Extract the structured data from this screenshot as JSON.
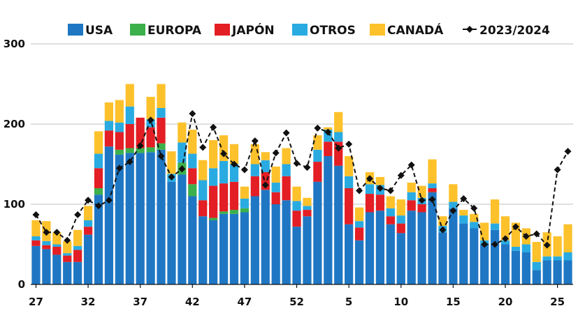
{
  "chart_data": {
    "type": "bar",
    "stacked": true,
    "title": "",
    "xlabel": "",
    "ylabel": "",
    "ylim": [
      0,
      300
    ],
    "yticks": [
      0,
      100,
      200,
      300
    ],
    "grid": true,
    "legend_position": "top",
    "x_tick_labels": [
      "27",
      "32",
      "37",
      "42",
      "47",
      "52",
      "5",
      "10",
      "15",
      "20",
      "25"
    ],
    "x_tick_indices": [
      0,
      5,
      10,
      15,
      20,
      25,
      30,
      35,
      40,
      45,
      50
    ],
    "categories": [
      "27",
      "28",
      "29",
      "30",
      "31",
      "32",
      "33",
      "34",
      "35",
      "36",
      "37",
      "38",
      "39",
      "40",
      "41",
      "42",
      "43",
      "44",
      "45",
      "46",
      "47",
      "48",
      "49",
      "50",
      "51",
      "52",
      "1",
      "2",
      "3",
      "4",
      "5",
      "6",
      "7",
      "8",
      "9",
      "10",
      "11",
      "12",
      "13",
      "14",
      "15",
      "16",
      "17",
      "18",
      "19",
      "20",
      "21",
      "22",
      "23",
      "24",
      "25",
      "26"
    ],
    "series": [
      {
        "name": "USA",
        "color": "#1f77c4",
        "values": [
          48,
          44,
          37,
          28,
          28,
          62,
          112,
          172,
          162,
          164,
          164,
          165,
          168,
          128,
          137,
          110,
          85,
          80,
          88,
          88,
          90,
          110,
          118,
          100,
          105,
          72,
          85,
          128,
          160,
          148,
          75,
          55,
          90,
          92,
          75,
          64,
          92,
          90,
          115,
          65,
          95,
          76,
          70,
          50,
          68,
          50,
          42,
          40,
          18,
          30,
          30,
          30
        ]
      },
      {
        "name": "EUROPA",
        "color": "#3cb04a",
        "values": [
          0,
          0,
          0,
          0,
          0,
          0,
          8,
          0,
          6,
          6,
          6,
          6,
          8,
          0,
          15,
          15,
          0,
          3,
          3,
          5,
          5,
          0,
          0,
          0,
          0,
          0,
          0,
          0,
          0,
          0,
          0,
          0,
          0,
          0,
          0,
          0,
          0,
          0,
          0,
          0,
          0,
          0,
          0,
          0,
          0,
          0,
          0,
          0,
          0,
          0,
          0,
          0
        ]
      },
      {
        "name": "JAPÓN",
        "color": "#e31e24",
        "values": [
          7,
          5,
          10,
          8,
          15,
          10,
          25,
          20,
          22,
          30,
          38,
          25,
          32,
          0,
          0,
          20,
          20,
          40,
          35,
          35,
          0,
          25,
          22,
          15,
          30,
          20,
          8,
          25,
          18,
          30,
          45,
          16,
          23,
          20,
          10,
          12,
          13,
          10,
          5,
          0,
          0,
          0,
          0,
          0,
          0,
          0,
          0,
          0,
          0,
          0,
          0,
          0
        ]
      },
      {
        "name": "OTROS",
        "color": "#29abe2",
        "values": [
          5,
          5,
          3,
          3,
          5,
          8,
          18,
          12,
          12,
          22,
          0,
          10,
          12,
          10,
          25,
          18,
          25,
          22,
          28,
          22,
          12,
          15,
          15,
          12,
          15,
          12,
          5,
          15,
          15,
          12,
          15,
          8,
          12,
          12,
          10,
          10,
          10,
          8,
          6,
          8,
          8,
          10,
          8,
          5,
          8,
          5,
          5,
          10,
          10,
          5,
          5,
          10
        ]
      },
      {
        "name": "CANADÁ",
        "color": "#fdc12b",
        "values": [
          20,
          25,
          15,
          15,
          20,
          18,
          28,
          23,
          28,
          28,
          0,
          28,
          30,
          28,
          25,
          30,
          25,
          35,
          32,
          25,
          15,
          25,
          10,
          20,
          20,
          18,
          10,
          18,
          3,
          25,
          25,
          17,
          15,
          10,
          15,
          20,
          12,
          15,
          30,
          12,
          22,
          7,
          10,
          22,
          30,
          30,
          30,
          20,
          25,
          30,
          25,
          35
        ]
      }
    ],
    "line_series": {
      "name": "2023/2024",
      "color": "#111111",
      "values": [
        87,
        65,
        65,
        55,
        87,
        105,
        98,
        105,
        145,
        153,
        173,
        205,
        160,
        134,
        144,
        213,
        171,
        196,
        163,
        150,
        143,
        179,
        124,
        164,
        189,
        151,
        146,
        195,
        190,
        170,
        175,
        117,
        132,
        120,
        117,
        136,
        149,
        105,
        106,
        68,
        92,
        107,
        95,
        50,
        50,
        57,
        72,
        60,
        63,
        49,
        143,
        166
      ]
    }
  },
  "legend": {
    "items": [
      {
        "label": "USA",
        "color": "#1f77c4",
        "kind": "swatch"
      },
      {
        "label": "EUROPA",
        "color": "#3cb04a",
        "kind": "swatch"
      },
      {
        "label": "JAPÓN",
        "color": "#e31e24",
        "kind": "swatch"
      },
      {
        "label": "OTROS",
        "color": "#29abe2",
        "kind": "swatch"
      },
      {
        "label": "CANADÁ",
        "color": "#fdc12b",
        "kind": "swatch"
      },
      {
        "label": "2023/2024",
        "color": "#111111",
        "kind": "line"
      }
    ]
  }
}
